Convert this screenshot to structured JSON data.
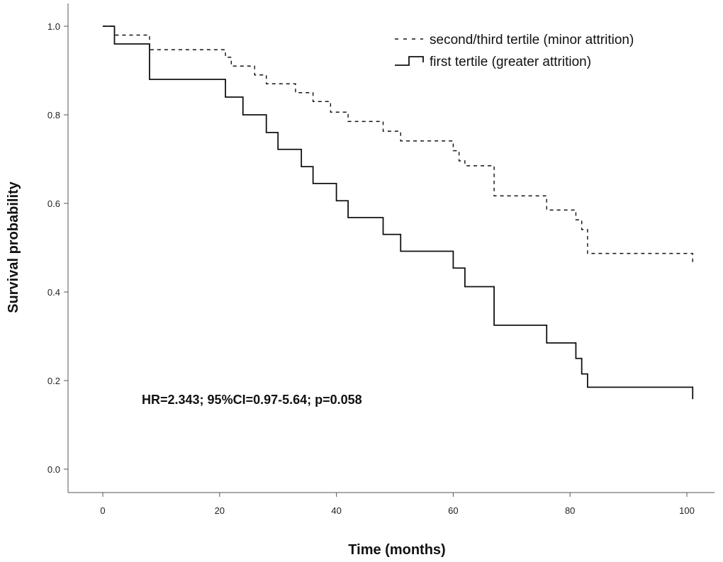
{
  "chart_data": {
    "type": "line",
    "title": "",
    "xlabel": "Time (months)",
    "ylabel": "Survival probability",
    "xlim": [
      0,
      101
    ],
    "ylim": [
      0,
      1.0
    ],
    "xticks": [
      0,
      20,
      40,
      60,
      80,
      100
    ],
    "yticks": [
      0.0,
      0.2,
      0.4,
      0.6,
      0.8,
      1.0
    ],
    "xtick_labels": [
      "0",
      "20",
      "40",
      "60",
      "80",
      "100"
    ],
    "ytick_labels": [
      "0.0",
      "0.2",
      "0.4",
      "0.6",
      "0.8",
      "1.0"
    ],
    "grid": false,
    "legend_position": "top-right",
    "annotation": "HR=2.343; 95%CI=0.97-5.64; p=0.058",
    "series": [
      {
        "name": "second/third tertile (minor attrition)",
        "style": "dashed",
        "color": "#111111",
        "x": [
          0,
          2,
          8,
          21,
          22,
          24,
          26,
          28,
          30,
          33,
          36,
          39,
          42,
          48,
          51,
          60,
          61,
          62,
          66,
          67,
          76,
          77,
          81,
          82,
          83,
          101
        ],
        "y": [
          1.0,
          0.98,
          0.947,
          0.93,
          0.91,
          0.91,
          0.89,
          0.87,
          0.87,
          0.85,
          0.83,
          0.806,
          0.785,
          0.763,
          0.741,
          0.719,
          0.696,
          0.685,
          0.685,
          0.617,
          0.585,
          0.585,
          0.563,
          0.541,
          0.487,
          0.466
        ]
      },
      {
        "name": "first tertile (greater attrition)",
        "style": "solid",
        "color": "#111111",
        "x": [
          0,
          2,
          8,
          21,
          24,
          28,
          30,
          34,
          36,
          40,
          42,
          48,
          51,
          60,
          62,
          67,
          76,
          81,
          82,
          83,
          101
        ],
        "y": [
          1.0,
          0.96,
          0.88,
          0.84,
          0.8,
          0.76,
          0.722,
          0.683,
          0.645,
          0.606,
          0.568,
          0.53,
          0.492,
          0.454,
          0.412,
          0.325,
          0.285,
          0.25,
          0.215,
          0.185,
          0.158
        ]
      }
    ]
  }
}
